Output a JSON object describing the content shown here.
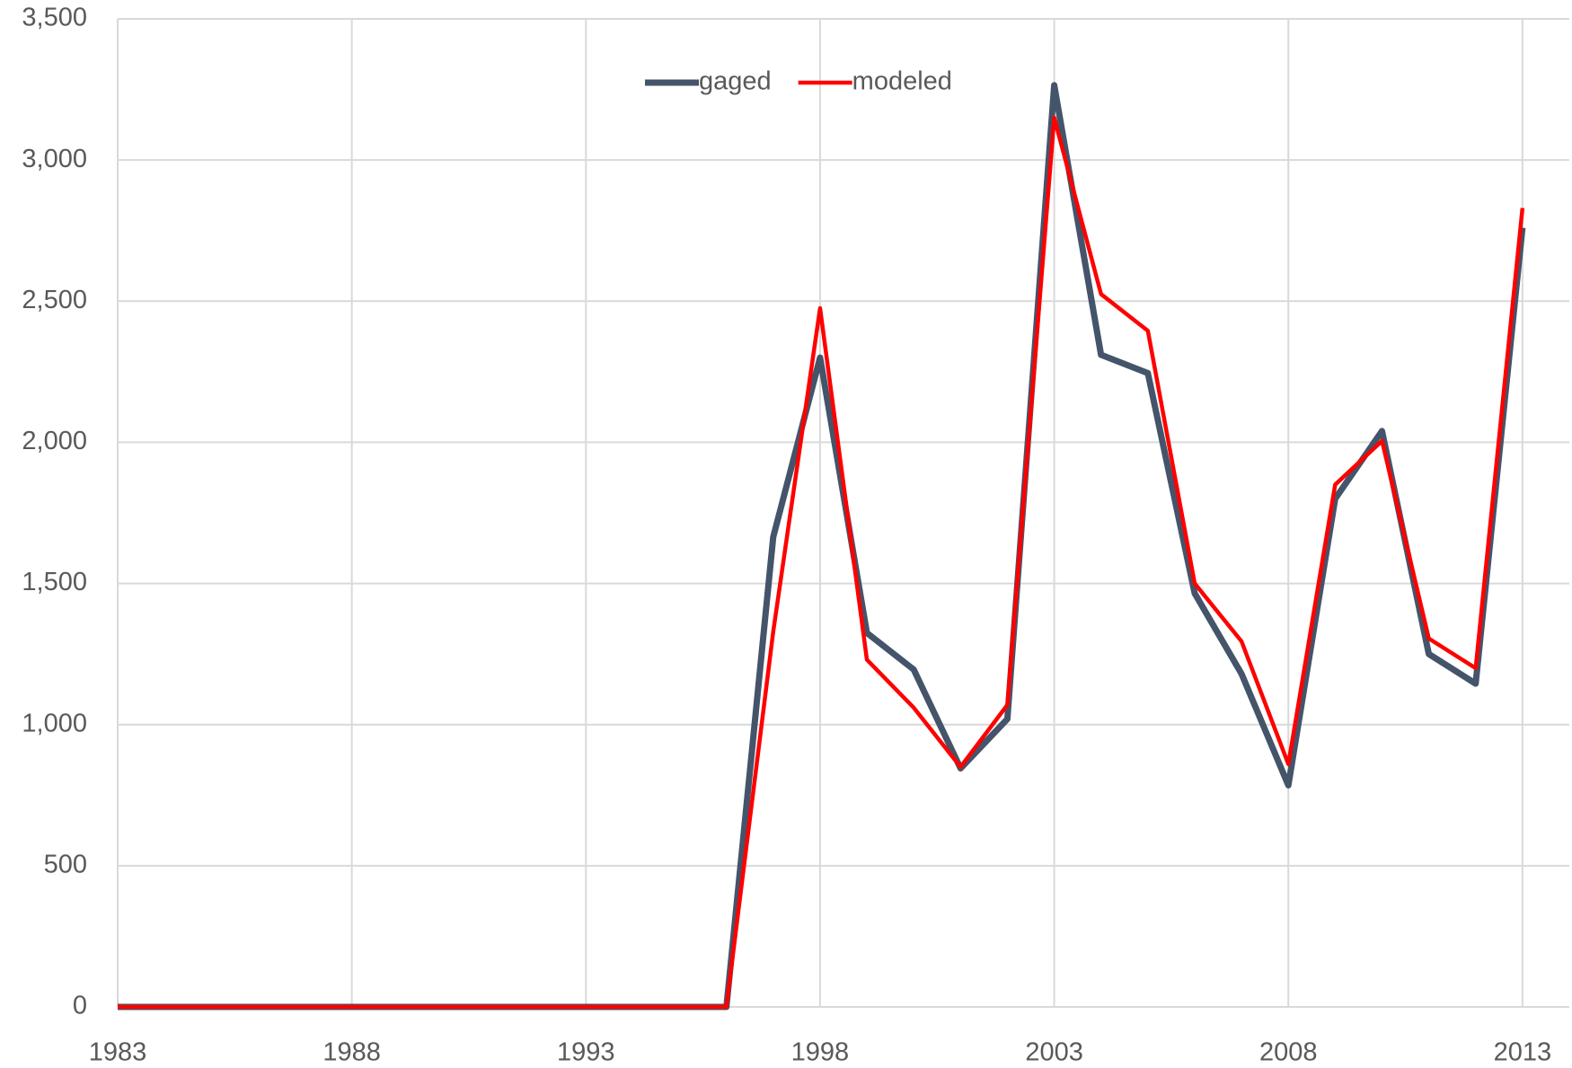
{
  "chart_data": {
    "type": "line",
    "x": [
      1983,
      1984,
      1985,
      1986,
      1987,
      1988,
      1989,
      1990,
      1991,
      1992,
      1993,
      1994,
      1995,
      1996,
      1997,
      1998,
      1999,
      2000,
      2001,
      2002,
      2003,
      2004,
      2005,
      2006,
      2007,
      2008,
      2009,
      2010,
      2011,
      2012,
      2013
    ],
    "series": [
      {
        "name": "gaged",
        "color": "#44546a",
        "values": [
          0,
          0,
          0,
          0,
          0,
          0,
          0,
          0,
          0,
          0,
          0,
          0,
          0,
          0,
          1665,
          2300,
          1325,
          1195,
          845,
          1020,
          3265,
          2310,
          2245,
          1465,
          1180,
          785,
          1800,
          2040,
          1250,
          1145,
          2760
        ]
      },
      {
        "name": "modeled",
        "color": "#ff0000",
        "values": [
          0,
          0,
          0,
          0,
          0,
          0,
          0,
          0,
          0,
          0,
          0,
          0,
          0,
          0,
          1330,
          2475,
          1230,
          1060,
          850,
          1070,
          3150,
          2525,
          2395,
          1500,
          1295,
          860,
          1850,
          2005,
          1305,
          1200,
          2830
        ]
      }
    ],
    "xlim": [
      1983,
      2014
    ],
    "xticks": [
      1983,
      1988,
      1993,
      1998,
      2003,
      2008,
      2013
    ],
    "ylim": [
      0,
      3500
    ],
    "yticks": [
      0,
      500,
      {
        "value": 1000,
        "label": "1,000"
      },
      {
        "value": 1500,
        "label": "1,500"
      },
      {
        "value": 2000,
        "label": "2,000"
      },
      {
        "value": 2500,
        "label": "2,500"
      },
      {
        "value": 3000,
        "label": "3,000"
      },
      {
        "value": 3500,
        "label": "3,500"
      }
    ],
    "grid": true,
    "legend": "top"
  }
}
